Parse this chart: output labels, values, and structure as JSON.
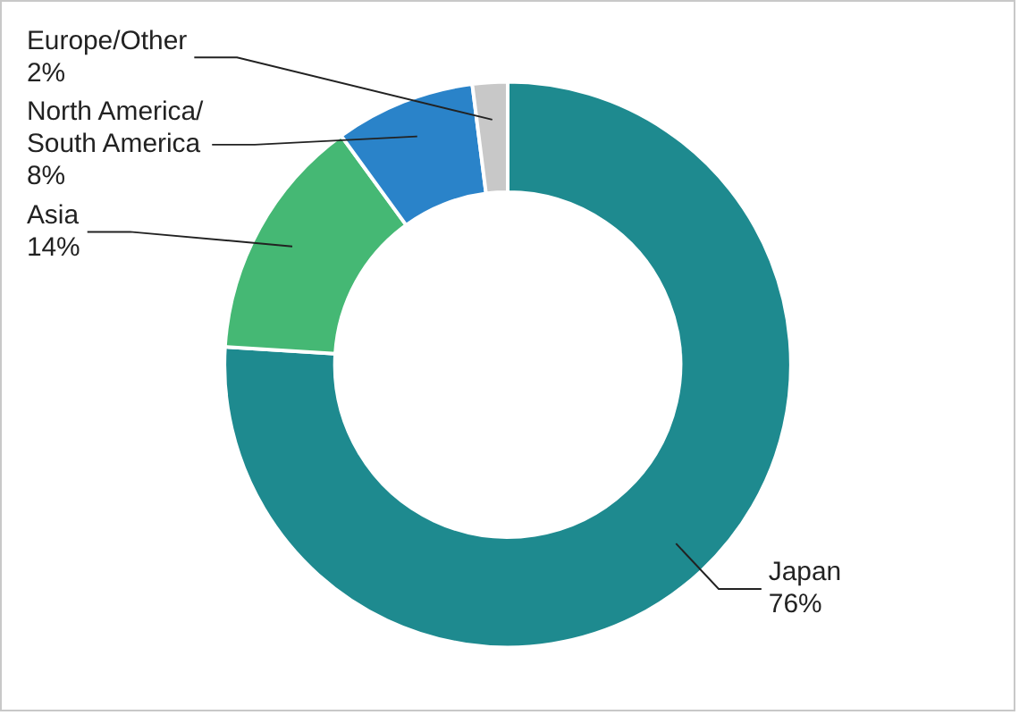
{
  "chart_data": {
    "type": "donut",
    "categories": [
      "Japan",
      "Asia",
      "North America/\nSouth America",
      "Europe/Other"
    ],
    "values": [
      76,
      14,
      8,
      2
    ],
    "colors": [
      "#1e8a8f",
      "#45b874",
      "#2a83c9",
      "#c8c8c8"
    ],
    "value_labels": [
      "76%",
      "14%",
      "8%",
      "2%"
    ]
  }
}
